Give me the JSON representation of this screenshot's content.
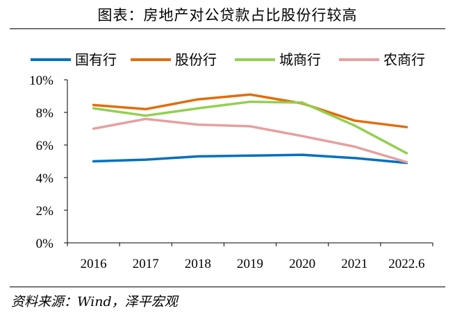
{
  "header": {
    "title": "图表：房地产对公贷款占比股份行较高"
  },
  "footer": {
    "source": "资料来源：Wind，泽平宏观"
  },
  "chart_data": {
    "type": "line",
    "title": "图表：房地产对公贷款占比股份行较高",
    "xlabel": "",
    "ylabel": "",
    "categories": [
      "2016",
      "2017",
      "2018",
      "2019",
      "2020",
      "2021",
      "2022.6"
    ],
    "ylim": [
      0,
      10
    ],
    "yticks": [
      "0%",
      "2%",
      "4%",
      "6%",
      "8%",
      "10%"
    ],
    "grid": false,
    "legend_position": "top",
    "series": [
      {
        "name": "国有行",
        "color": "#0070C0",
        "values": [
          5.0,
          5.1,
          5.3,
          5.35,
          5.4,
          5.2,
          4.9
        ]
      },
      {
        "name": "股份行",
        "color": "#E36C0A",
        "values": [
          8.45,
          8.2,
          8.8,
          9.1,
          8.55,
          7.5,
          7.1
        ]
      },
      {
        "name": "城商行",
        "color": "#92D050",
        "values": [
          8.25,
          7.8,
          8.25,
          8.65,
          8.6,
          7.2,
          5.5
        ]
      },
      {
        "name": "农商行",
        "color": "#E6A0A0",
        "values": [
          7.0,
          7.6,
          7.25,
          7.15,
          6.55,
          5.9,
          4.95
        ]
      }
    ]
  }
}
